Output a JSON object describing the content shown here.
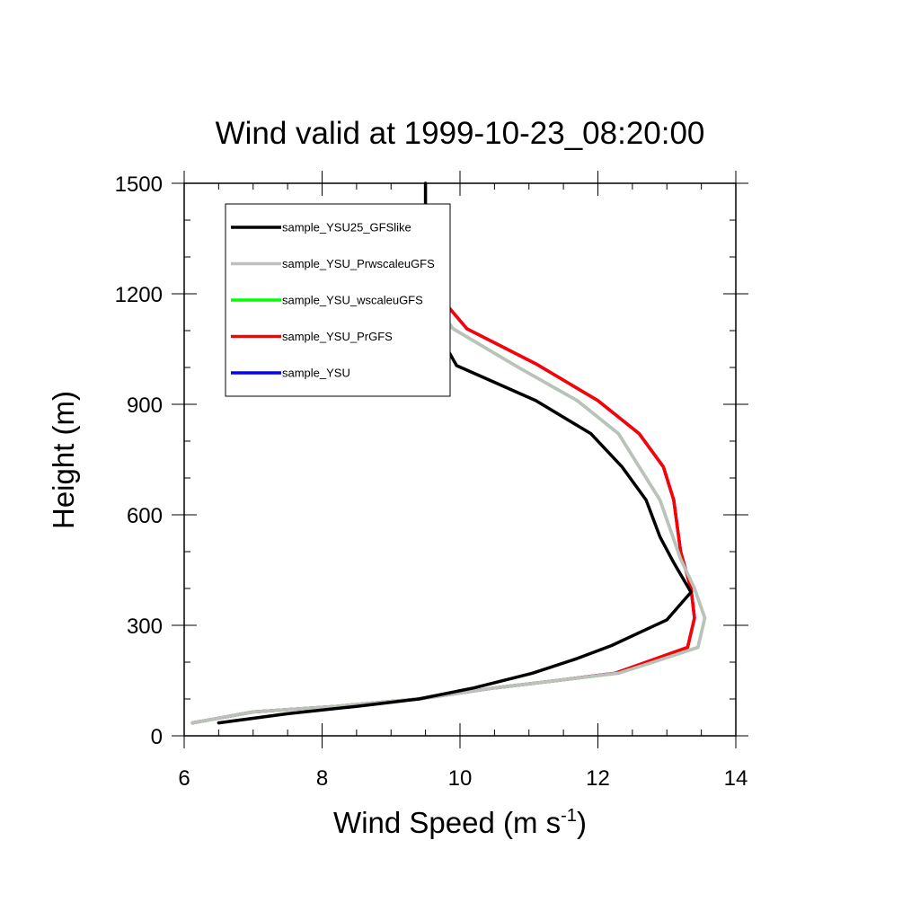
{
  "chart_data": {
    "type": "line",
    "title": "Wind valid at 1999-10-23_08:20:00",
    "xlabel": "Wind Speed (m s",
    "xlabel_sup": "-1",
    "xlabel_close": ")",
    "ylabel": "Height (m)",
    "xlim": [
      6,
      14
    ],
    "ylim": [
      0,
      1500
    ],
    "xticks": [
      6,
      8,
      10,
      12,
      14
    ],
    "yticks": [
      0,
      300,
      600,
      900,
      1200,
      1500
    ],
    "grid": false,
    "legend_position": "top-left",
    "series": [
      {
        "name": "sample_YSU",
        "color": "#0000ff",
        "points": [
          [
            6.12,
            35
          ],
          [
            7.0,
            65
          ],
          [
            8.2,
            80
          ],
          [
            9.4,
            100
          ],
          [
            10.5,
            130
          ],
          [
            11.4,
            150
          ],
          [
            12.25,
            170
          ],
          [
            12.7,
            200
          ],
          [
            13.3,
            240
          ],
          [
            13.4,
            320
          ],
          [
            13.35,
            400
          ],
          [
            13.2,
            500
          ],
          [
            13.1,
            640
          ],
          [
            12.95,
            730
          ],
          [
            12.6,
            820
          ],
          [
            12.0,
            910
          ],
          [
            11.1,
            1010
          ],
          [
            10.1,
            1105
          ],
          [
            9.6,
            1215
          ],
          [
            9.55,
            1290
          ]
        ]
      },
      {
        "name": "sample_YSU_PrGFS",
        "color": "#ff0000",
        "points": [
          [
            6.12,
            35
          ],
          [
            7.0,
            65
          ],
          [
            8.2,
            80
          ],
          [
            9.4,
            100
          ],
          [
            10.5,
            130
          ],
          [
            11.4,
            150
          ],
          [
            12.25,
            170
          ],
          [
            12.7,
            200
          ],
          [
            13.3,
            240
          ],
          [
            13.4,
            320
          ],
          [
            13.35,
            400
          ],
          [
            13.2,
            500
          ],
          [
            13.1,
            640
          ],
          [
            12.95,
            730
          ],
          [
            12.6,
            820
          ],
          [
            12.0,
            910
          ],
          [
            11.1,
            1010
          ],
          [
            10.1,
            1105
          ],
          [
            9.6,
            1215
          ],
          [
            9.55,
            1290
          ]
        ]
      },
      {
        "name": "sample_YSU_wscaleuGFS",
        "color": "#00ff00",
        "points": [
          [
            6.12,
            35
          ],
          [
            7.0,
            65
          ],
          [
            8.2,
            80
          ],
          [
            9.4,
            100
          ],
          [
            10.5,
            130
          ],
          [
            11.4,
            150
          ],
          [
            12.3,
            170
          ],
          [
            12.8,
            200
          ],
          [
            13.45,
            240
          ],
          [
            13.55,
            320
          ],
          [
            13.4,
            400
          ],
          [
            13.2,
            480
          ],
          [
            13.05,
            560
          ],
          [
            12.9,
            640
          ],
          [
            12.6,
            730
          ],
          [
            12.3,
            820
          ],
          [
            11.7,
            910
          ],
          [
            10.85,
            1000
          ],
          [
            9.9,
            1105
          ],
          [
            9.6,
            1180
          ],
          [
            9.55,
            1240
          ]
        ]
      },
      {
        "name": "sample_YSU_PrwscaleuGFS",
        "color": "#bfbfbf",
        "points": [
          [
            6.12,
            35
          ],
          [
            7.0,
            65
          ],
          [
            8.2,
            80
          ],
          [
            9.4,
            100
          ],
          [
            10.5,
            130
          ],
          [
            11.4,
            150
          ],
          [
            12.3,
            170
          ],
          [
            12.8,
            200
          ],
          [
            13.45,
            240
          ],
          [
            13.55,
            320
          ],
          [
            13.4,
            400
          ],
          [
            13.2,
            480
          ],
          [
            13.05,
            560
          ],
          [
            12.9,
            640
          ],
          [
            12.6,
            730
          ],
          [
            12.3,
            820
          ],
          [
            11.7,
            910
          ],
          [
            10.85,
            1000
          ],
          [
            9.9,
            1105
          ],
          [
            9.6,
            1180
          ],
          [
            9.55,
            1240
          ]
        ]
      },
      {
        "name": "sample_YSU25_GFSlike",
        "color": "#000000",
        "points": [
          [
            6.5,
            35
          ],
          [
            7.5,
            60
          ],
          [
            8.5,
            80
          ],
          [
            9.4,
            100
          ],
          [
            10.2,
            130
          ],
          [
            11.05,
            170
          ],
          [
            11.7,
            210
          ],
          [
            12.2,
            245
          ],
          [
            12.6,
            280
          ],
          [
            13.0,
            315
          ],
          [
            13.35,
            390
          ],
          [
            13.1,
            470
          ],
          [
            12.9,
            540
          ],
          [
            12.7,
            640
          ],
          [
            12.35,
            730
          ],
          [
            11.9,
            820
          ],
          [
            11.1,
            910
          ],
          [
            9.95,
            1005
          ],
          [
            9.65,
            1105
          ],
          [
            9.55,
            1200
          ],
          [
            9.5,
            1300
          ],
          [
            9.5,
            1400
          ],
          [
            9.5,
            1500
          ]
        ]
      }
    ],
    "legend_order": [
      "sample_YSU25_GFSlike",
      "sample_YSU_PrwscaleuGFS",
      "sample_YSU_wscaleuGFS",
      "sample_YSU_PrGFS",
      "sample_YSU"
    ]
  }
}
